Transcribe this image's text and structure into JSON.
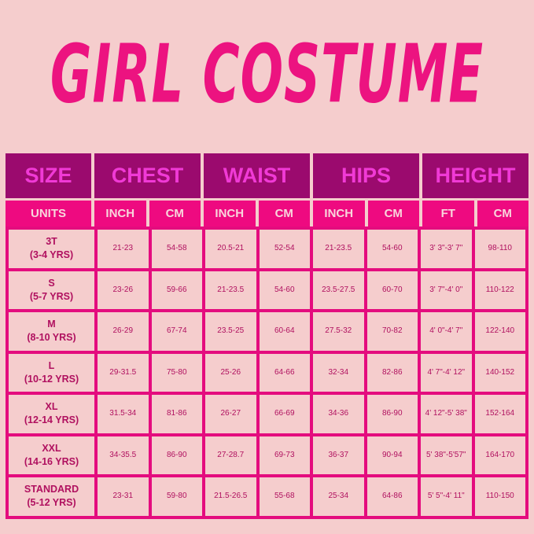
{
  "title": "GIRL COSTUME",
  "colors": {
    "background": "#f5cdcd",
    "title": "#ec1380",
    "group_header_bg": "#9b0a6e",
    "group_header_text": "#f03ad6",
    "units_bg": "#ee0a80",
    "border": "#e40c7e",
    "cell_text": "#b0105f"
  },
  "groups": [
    "SIZE",
    "CHEST",
    "WAIST",
    "HIPS",
    "HEIGHT"
  ],
  "units": [
    "UNITS",
    "INCH",
    "CM",
    "INCH",
    "CM",
    "INCH",
    "CM",
    "FT",
    "CM"
  ],
  "rows": [
    {
      "size": "3T",
      "age": "(3-4 YRS)",
      "values": [
        "21-23",
        "54-58",
        "20.5-21",
        "52-54",
        "21-23.5",
        "54-60",
        "3' 3\"-3' 7\"",
        "98-110"
      ]
    },
    {
      "size": "S",
      "age": "(5-7 YRS)",
      "values": [
        "23-26",
        "59-66",
        "21-23.5",
        "54-60",
        "23.5-27.5",
        "60-70",
        "3' 7\"-4' 0\"",
        "110-122"
      ]
    },
    {
      "size": "M",
      "age": "(8-10 YRS)",
      "values": [
        "26-29",
        "67-74",
        "23.5-25",
        "60-64",
        "27.5-32",
        "70-82",
        "4' 0\"-4' 7\"",
        "122-140"
      ]
    },
    {
      "size": "L",
      "age": "(10-12 YRS)",
      "values": [
        "29-31.5",
        "75-80",
        "25-26",
        "64-66",
        "32-34",
        "82-86",
        "4' 7\"-4' 12\"",
        "140-152"
      ]
    },
    {
      "size": "XL",
      "age": "(12-14 YRS)",
      "values": [
        "31.5-34",
        "81-86",
        "26-27",
        "66-69",
        "34-36",
        "86-90",
        "4' 12\"-5' 38\"",
        "152-164"
      ]
    },
    {
      "size": "XXL",
      "age": "(14-16 YRS)",
      "values": [
        "34-35.5",
        "86-90",
        "27-28.7",
        "69-73",
        "36-37",
        "90-94",
        "5' 38\"-5'57\"",
        "164-170"
      ]
    },
    {
      "size": "STANDARD",
      "age": "(5-12 YRS)",
      "values": [
        "23-31",
        "59-80",
        "21.5-26.5",
        "55-68",
        "25-34",
        "64-86",
        "5' 5\"-4' 11\"",
        "110-150"
      ]
    }
  ]
}
